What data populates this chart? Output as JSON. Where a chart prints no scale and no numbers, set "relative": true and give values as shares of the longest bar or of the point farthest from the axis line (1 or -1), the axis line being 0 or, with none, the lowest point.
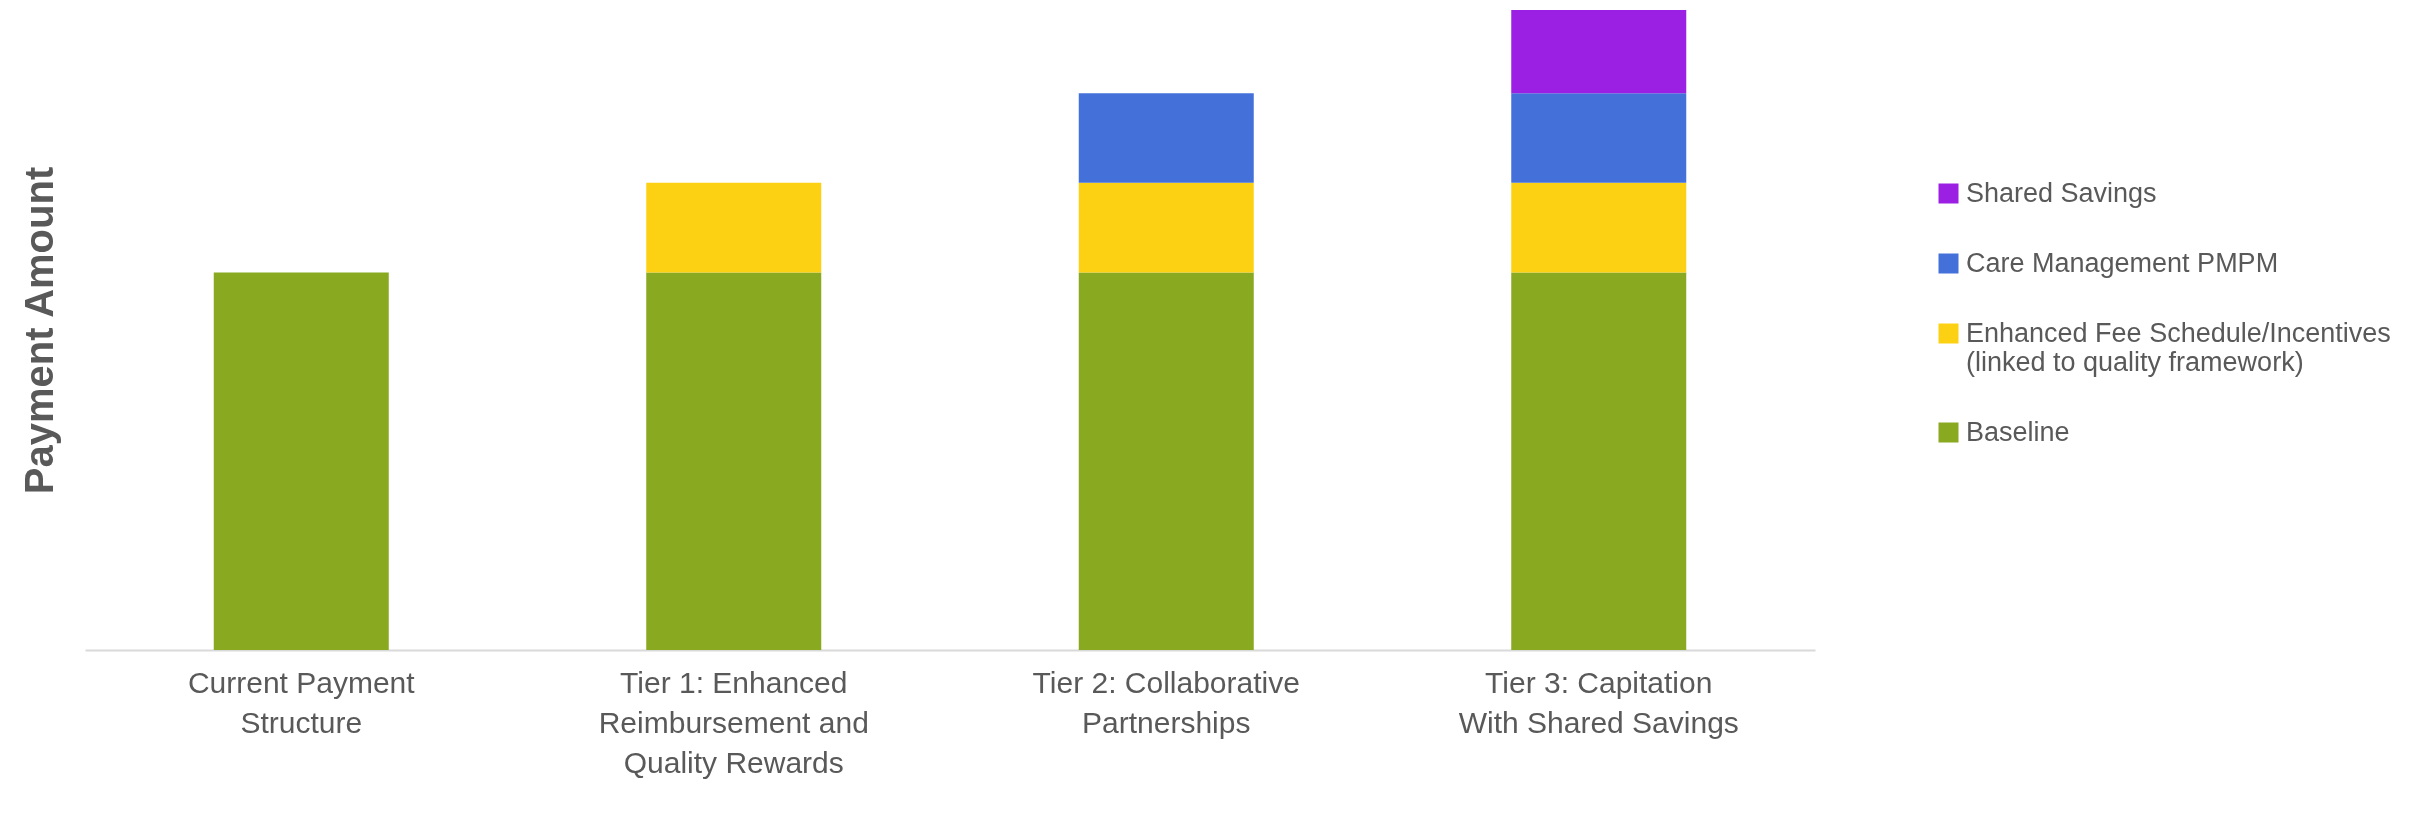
{
  "chart_data": {
    "type": "bar",
    "stacked": true,
    "relative": true,
    "ylabel": "Payment Amount",
    "legend": "right",
    "grid": false,
    "categories": [
      "Current Payment Structure",
      "Tier 1: Enhanced Reimbursement and Quality Rewards",
      "Tier 2: Collaborative Partnerships",
      "Tier 3: Capitation With Shared Savings"
    ],
    "series": [
      {
        "name": "Baseline",
        "color": "#88a920",
        "values": [
          0.59,
          0.59,
          0.59,
          0.59
        ]
      },
      {
        "name": "Enhanced Fee Schedule/Incentives (linked to quality framework)",
        "color": "#fcd013",
        "values": [
          null,
          0.14,
          0.14,
          0.14
        ]
      },
      {
        "name": "Care Management PMPM",
        "color": "#4470d9",
        "values": [
          null,
          null,
          0.14,
          0.14
        ]
      },
      {
        "name": "Shared Savings",
        "color": "#9b20e3",
        "values": [
          null,
          null,
          null,
          0.13
        ]
      }
    ]
  }
}
